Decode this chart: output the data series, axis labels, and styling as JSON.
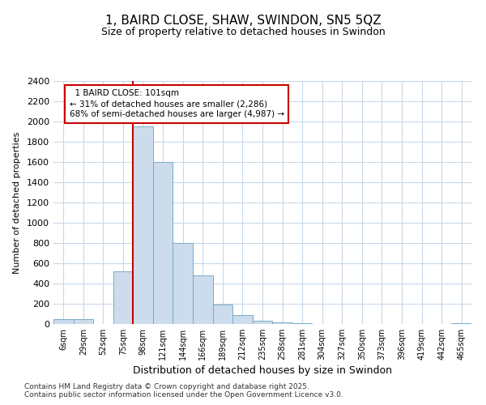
{
  "title": "1, BAIRD CLOSE, SHAW, SWINDON, SN5 5QZ",
  "subtitle": "Size of property relative to detached houses in Swindon",
  "xlabel": "Distribution of detached houses by size in Swindon",
  "ylabel": "Number of detached properties",
  "footnote1": "Contains HM Land Registry data © Crown copyright and database right 2025.",
  "footnote2": "Contains public sector information licensed under the Open Government Licence v3.0.",
  "annotation_line1": "  1 BAIRD CLOSE: 101sqm",
  "annotation_line2": "← 31% of detached houses are smaller (2,286)",
  "annotation_line3": "68% of semi-detached houses are larger (4,987) →",
  "bar_color": "#ccdcec",
  "bar_edge_color": "#7aaac8",
  "marker_color": "#cc0000",
  "bins": [
    "6sqm",
    "29sqm",
    "52sqm",
    "75sqm",
    "98sqm",
    "121sqm",
    "144sqm",
    "166sqm",
    "189sqm",
    "212sqm",
    "235sqm",
    "258sqm",
    "281sqm",
    "304sqm",
    "327sqm",
    "350sqm",
    "373sqm",
    "396sqm",
    "419sqm",
    "442sqm",
    "465sqm"
  ],
  "values": [
    50,
    50,
    0,
    520,
    1950,
    1600,
    800,
    480,
    190,
    90,
    35,
    20,
    5,
    0,
    0,
    0,
    0,
    0,
    0,
    0,
    10
  ],
  "ylim": [
    0,
    2400
  ],
  "yticks": [
    0,
    200,
    400,
    600,
    800,
    1000,
    1200,
    1400,
    1600,
    1800,
    2000,
    2200,
    2400
  ],
  "property_bin_index": 4,
  "bg_color": "#ffffff",
  "grid_color": "#c8d8e8",
  "title_fontsize": 11,
  "subtitle_fontsize": 9
}
